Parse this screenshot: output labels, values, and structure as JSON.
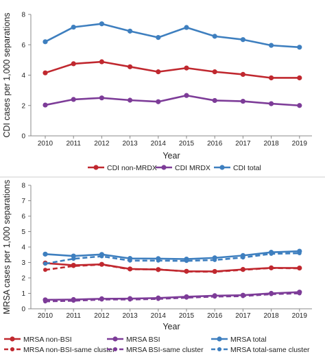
{
  "chart_data": [
    {
      "type": "line",
      "xlabel": "Year",
      "ylabel": "CDI cases per 1,000 separations",
      "categories": [
        "2010",
        "2011",
        "2012",
        "2013",
        "2014",
        "2015",
        "2016",
        "2017",
        "2018",
        "2019"
      ],
      "ylim": [
        0,
        8
      ],
      "yticks": [
        "0",
        "2",
        "4",
        "6",
        "8"
      ],
      "grid": false,
      "legend_position": "bottom",
      "series": [
        {
          "name": "CDI non-MRDX",
          "color": "#c0282f",
          "dashed": false,
          "values": [
            4.15,
            4.75,
            4.88,
            4.55,
            4.22,
            4.47,
            4.22,
            4.05,
            3.82,
            3.82
          ]
        },
        {
          "name": "CDI MRDX",
          "color": "#7d3c98",
          "dashed": false,
          "values": [
            2.03,
            2.4,
            2.5,
            2.35,
            2.25,
            2.66,
            2.33,
            2.28,
            2.12,
            2.0
          ]
        },
        {
          "name": "CDI total",
          "color": "#3e7fbf",
          "dashed": false,
          "values": [
            6.2,
            7.16,
            7.38,
            6.9,
            6.48,
            7.14,
            6.56,
            6.34,
            5.96,
            5.84
          ]
        }
      ]
    },
    {
      "type": "line",
      "xlabel": "Year",
      "ylabel": "MRSA cases per 1,000 separations",
      "categories": [
        "2010",
        "2011",
        "2012",
        "2013",
        "2014",
        "2015",
        "2016",
        "2017",
        "2018",
        "2019"
      ],
      "ylim": [
        0,
        8
      ],
      "yticks": [
        "0",
        "1",
        "2",
        "3",
        "4",
        "5",
        "6",
        "7",
        "8"
      ],
      "grid": false,
      "legend_position": "bottom",
      "series": [
        {
          "name": "MRSA non-BSI",
          "color": "#c0282f",
          "dashed": false,
          "values": [
            2.96,
            2.82,
            2.88,
            2.58,
            2.54,
            2.43,
            2.42,
            2.55,
            2.65,
            2.64
          ]
        },
        {
          "name": "MRSA BSI",
          "color": "#7d3c98",
          "dashed": false,
          "values": [
            0.58,
            0.6,
            0.65,
            0.66,
            0.7,
            0.78,
            0.85,
            0.88,
            1.0,
            1.08
          ]
        },
        {
          "name": "MRSA total",
          "color": "#3e7fbf",
          "dashed": false,
          "values": [
            3.54,
            3.42,
            3.52,
            3.26,
            3.25,
            3.22,
            3.3,
            3.45,
            3.66,
            3.73
          ]
        },
        {
          "name": "MRSA non-BSI-same cluster",
          "color": "#c0282f",
          "dashed": true,
          "values": [
            2.52,
            2.77,
            2.86,
            2.56,
            2.56,
            2.41,
            2.4,
            2.52,
            2.64,
            2.62
          ]
        },
        {
          "name": "MRSA BSI-same cluster",
          "color": "#7d3c98",
          "dashed": true,
          "values": [
            0.48,
            0.52,
            0.6,
            0.6,
            0.64,
            0.72,
            0.79,
            0.82,
            0.95,
            1.0
          ]
        },
        {
          "name": "MRSA total-same cluster",
          "color": "#3e7fbf",
          "dashed": true,
          "values": [
            2.92,
            3.24,
            3.4,
            3.12,
            3.12,
            3.1,
            3.16,
            3.32,
            3.56,
            3.6
          ]
        }
      ]
    }
  ]
}
